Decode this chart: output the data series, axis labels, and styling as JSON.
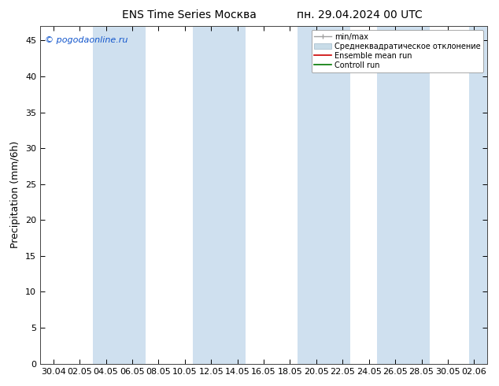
{
  "title": "ENS Time Series Москва",
  "title_right": "пн. 29.04.2024 00 UTC",
  "ylabel": "Precipitation (mm/6h)",
  "copyright": "© pogodaonline.ru",
  "ylim": [
    0,
    47
  ],
  "yticks": [
    0,
    5,
    10,
    15,
    20,
    25,
    30,
    35,
    40,
    45
  ],
  "xtick_labels": [
    "30.04",
    "02.05",
    "04.05",
    "06.05",
    "08.05",
    "10.05",
    "12.05",
    "14.05",
    "16.05",
    "18.05",
    "20.05",
    "22.05",
    "24.05",
    "26.05",
    "28.05",
    "30.05",
    "02.06"
  ],
  "shade_band_color": "#cfe0ef",
  "legend_entries": [
    "min/max",
    "Среднеквадратическое отклонение",
    "Ensemble mean run",
    "Controll run"
  ],
  "legend_line_colors": [
    "#a0a0a0",
    "#b8ccd8",
    "#cc0000",
    "#007700"
  ],
  "background_color": "#ffffff",
  "title_fontsize": 10,
  "label_fontsize": 9,
  "tick_fontsize": 8,
  "band_ranges_idx": [
    [
      2,
      3
    ],
    [
      6,
      7
    ],
    [
      10,
      11
    ],
    [
      13,
      14
    ],
    [
      16,
      17
    ]
  ],
  "n_xticks": 17
}
